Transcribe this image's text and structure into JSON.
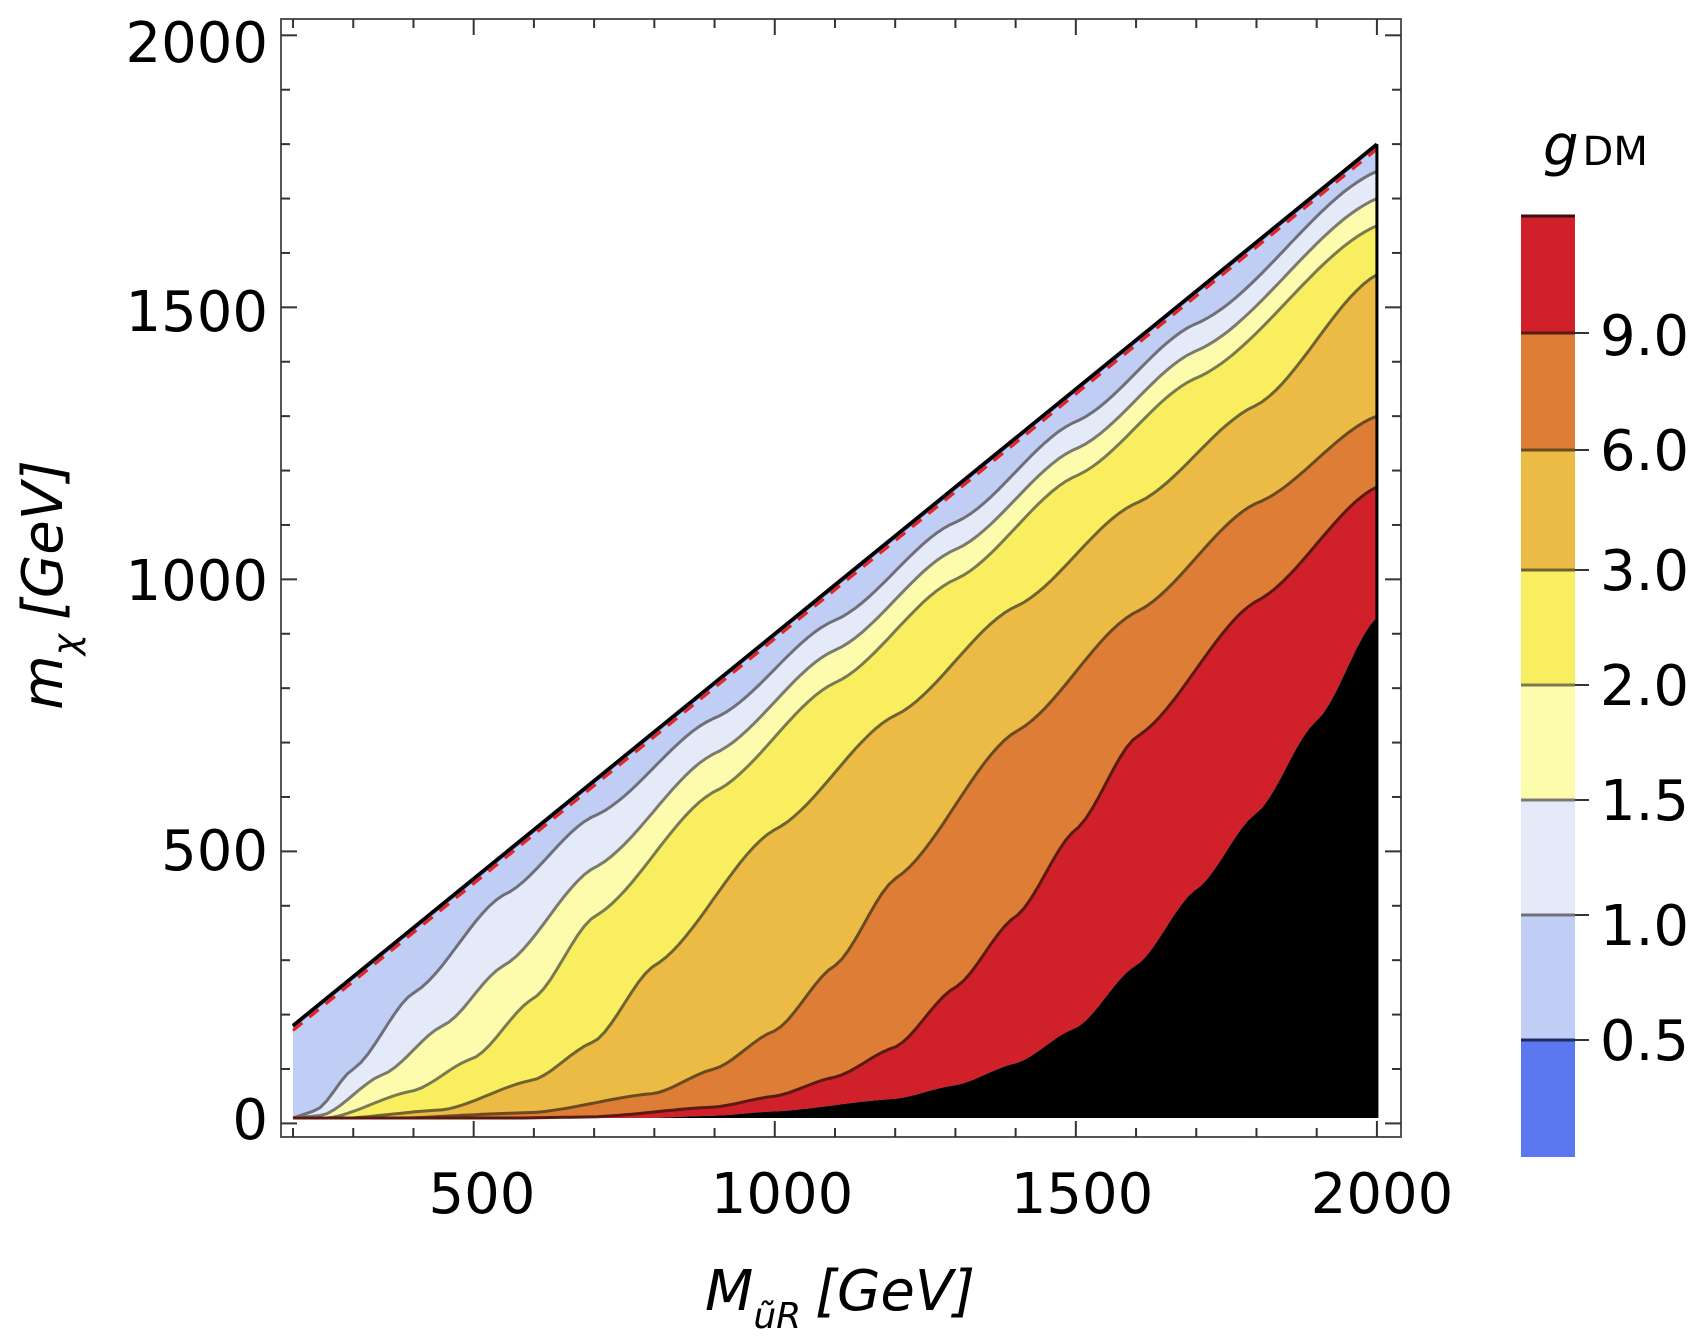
{
  "chart_data": {
    "type": "contour",
    "xlabel": {
      "main": "M",
      "sub": "ũR",
      "unit": "[GeV]"
    },
    "ylabel": {
      "main": "m",
      "sub": "χ",
      "unit": "[GeV]"
    },
    "xlim": [
      180,
      2040
    ],
    "ylim": [
      -25,
      2030
    ],
    "x_ticks": [
      500,
      1000,
      1500,
      2000
    ],
    "x_tick_labels": [
      "500",
      "1000",
      "1500",
      "2000"
    ],
    "y_ticks": [
      0,
      500,
      1000,
      1500,
      2000
    ],
    "y_tick_labels": [
      "0",
      "500",
      "1000",
      "1500",
      "2000"
    ],
    "x_minor_step": 100,
    "y_minor_step": 100,
    "grid": false,
    "domain": {
      "x_min": 200,
      "x_max": 2000,
      "upper_boundary": "m_chi = 0.9 * M"
    },
    "colorbar": {
      "title": {
        "main": "g",
        "sub": "DM"
      },
      "tick_labels": [
        "0.5",
        "1.0",
        "1.5",
        "2.0",
        "3.0",
        "6.0",
        "9.0"
      ],
      "levels": [
        0.5,
        1.0,
        1.5,
        2.0,
        3.0,
        6.0,
        9.0
      ],
      "band_colors": [
        "#5b78f0",
        "#c0cdf4",
        "#e4eaf8",
        "#fdfcac",
        "#f8ee60",
        "#ebbb45",
        "#dd7d36",
        "#d0202a",
        "#000000"
      ]
    },
    "contour_lines": [
      {
        "level": 0.5,
        "x": [
          240,
          1997
        ],
        "m_chi_at_x": [
          30,
          1797
        ]
      },
      {
        "level": 1.0,
        "x": [
          250,
          400,
          550,
          700,
          900,
          1100,
          1300,
          1500,
          1700,
          1900,
          2000
        ],
        "m_chi_at_x": [
          5,
          110,
          300,
          455,
          645,
          830,
          1015,
          1200,
          1385,
          1570,
          1660
        ]
      },
      {
        "level": 9.0,
        "x": [
          350,
          600,
          800,
          1000,
          1200,
          1400,
          1600,
          1800,
          2000
        ],
        "m_chi_at_x": [
          2,
          4,
          10,
          20,
          45,
          95,
          230,
          560,
          930
        ]
      }
    ],
    "dashed_line": {
      "color": "#e8221e",
      "relation": "m_chi = 0.9 * M"
    }
  }
}
